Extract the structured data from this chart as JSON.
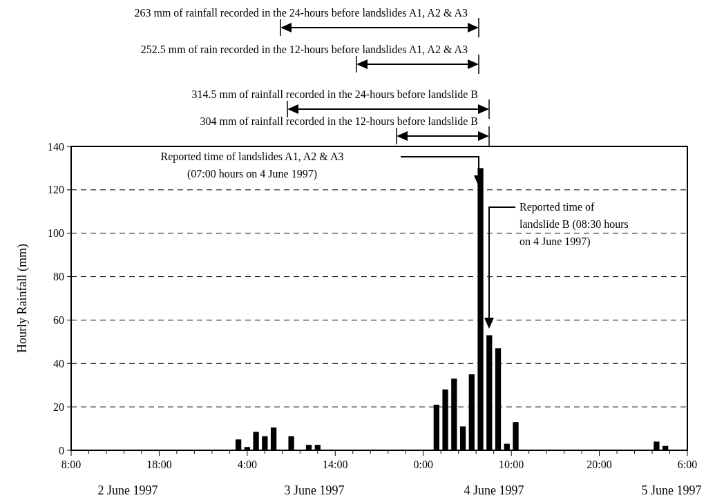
{
  "chart_data": {
    "type": "bar",
    "ylabel": "Hourly Rainfall (mm)",
    "x": [
      "1997-06-03T03:00",
      "1997-06-03T04:00",
      "1997-06-03T05:00",
      "1997-06-03T06:00",
      "1997-06-03T07:00",
      "1997-06-03T09:00",
      "1997-06-03T11:00",
      "1997-06-03T12:00",
      "1997-06-04T01:30",
      "1997-06-04T02:30",
      "1997-06-04T03:30",
      "1997-06-04T04:30",
      "1997-06-04T05:30",
      "1997-06-04T06:30",
      "1997-06-04T07:30",
      "1997-06-04T08:30",
      "1997-06-04T09:30",
      "1997-06-04T10:30",
      "1997-06-05T02:30",
      "1997-06-05T03:30"
    ],
    "values": [
      5,
      1.5,
      8.5,
      6.5,
      10.5,
      6.5,
      2.5,
      2.5,
      21,
      28,
      33,
      11,
      35,
      130,
      53,
      47,
      3,
      13,
      4,
      2
    ],
    "color": "#000000",
    "xlim": [
      "1997-06-02T08:00",
      "1997-06-05T06:00"
    ],
    "xticks": [
      {
        "value": "1997-06-02T08:00",
        "label": "8:00"
      },
      {
        "value": "1997-06-02T10:00",
        "label": null
      },
      {
        "value": "1997-06-02T12:00",
        "label": null
      },
      {
        "value": "1997-06-02T14:00",
        "label": null
      },
      {
        "value": "1997-06-02T16:00",
        "label": null
      },
      {
        "value": "1997-06-02T18:00",
        "label": "18:00"
      },
      {
        "value": "1997-06-02T20:00",
        "label": null
      },
      {
        "value": "1997-06-02T22:00",
        "label": null
      },
      {
        "value": "1997-06-03T00:00",
        "label": null
      },
      {
        "value": "1997-06-03T02:00",
        "label": null
      },
      {
        "value": "1997-06-03T04:00",
        "label": "4:00"
      },
      {
        "value": "1997-06-03T06:00",
        "label": null
      },
      {
        "value": "1997-06-03T08:00",
        "label": null
      },
      {
        "value": "1997-06-03T10:00",
        "label": null
      },
      {
        "value": "1997-06-03T12:00",
        "label": null
      },
      {
        "value": "1997-06-03T14:00",
        "label": "14:00"
      },
      {
        "value": "1997-06-03T16:00",
        "label": null
      },
      {
        "value": "1997-06-03T18:00",
        "label": null
      },
      {
        "value": "1997-06-03T20:00",
        "label": null
      },
      {
        "value": "1997-06-03T22:00",
        "label": null
      },
      {
        "value": "1997-06-04T00:00",
        "label": "0:00"
      },
      {
        "value": "1997-06-04T02:00",
        "label": null
      },
      {
        "value": "1997-06-04T04:00",
        "label": null
      },
      {
        "value": "1997-06-04T06:00",
        "label": null
      },
      {
        "value": "1997-06-04T08:00",
        "label": null
      },
      {
        "value": "1997-06-04T10:00",
        "label": "10:00"
      },
      {
        "value": "1997-06-04T12:00",
        "label": null
      },
      {
        "value": "1997-06-04T14:00",
        "label": null
      },
      {
        "value": "1997-06-04T16:00",
        "label": null
      },
      {
        "value": "1997-06-04T18:00",
        "label": null
      },
      {
        "value": "1997-06-04T20:00",
        "label": "20:00"
      },
      {
        "value": "1997-06-04T22:00",
        "label": null
      },
      {
        "value": "1997-06-05T00:00",
        "label": null
      },
      {
        "value": "1997-06-05T02:00",
        "label": null
      },
      {
        "value": "1997-06-05T04:00",
        "label": null
      },
      {
        "value": "1997-06-05T06:00",
        "label": "6:00"
      }
    ],
    "ylim": [
      0,
      140
    ],
    "yticks": [
      0,
      20,
      40,
      60,
      80,
      100,
      120,
      140
    ],
    "grid": "y",
    "annotations": [
      "263 mm of rainfall recorded in the 24-hours before landslides A1, A2 & A3",
      "252.5 mm of rain recorded in the 12-hours before landslides A1, A2 & A3",
      "314.5 mm of rainfall recorded in the 24-hours before landslide B",
      "304 mm of rainfall recorded in the 12-hours before landslide B",
      "Reported time of landslides A1, A2 & A3\n(07:00 hours on 4 June 1997)",
      "Reported time of\nlandslide B  (08:30 hours\non 4 June 1997)",
      "2 June 1997",
      "3 June 1997",
      "4 June 1997",
      "5 June 1997"
    ]
  }
}
